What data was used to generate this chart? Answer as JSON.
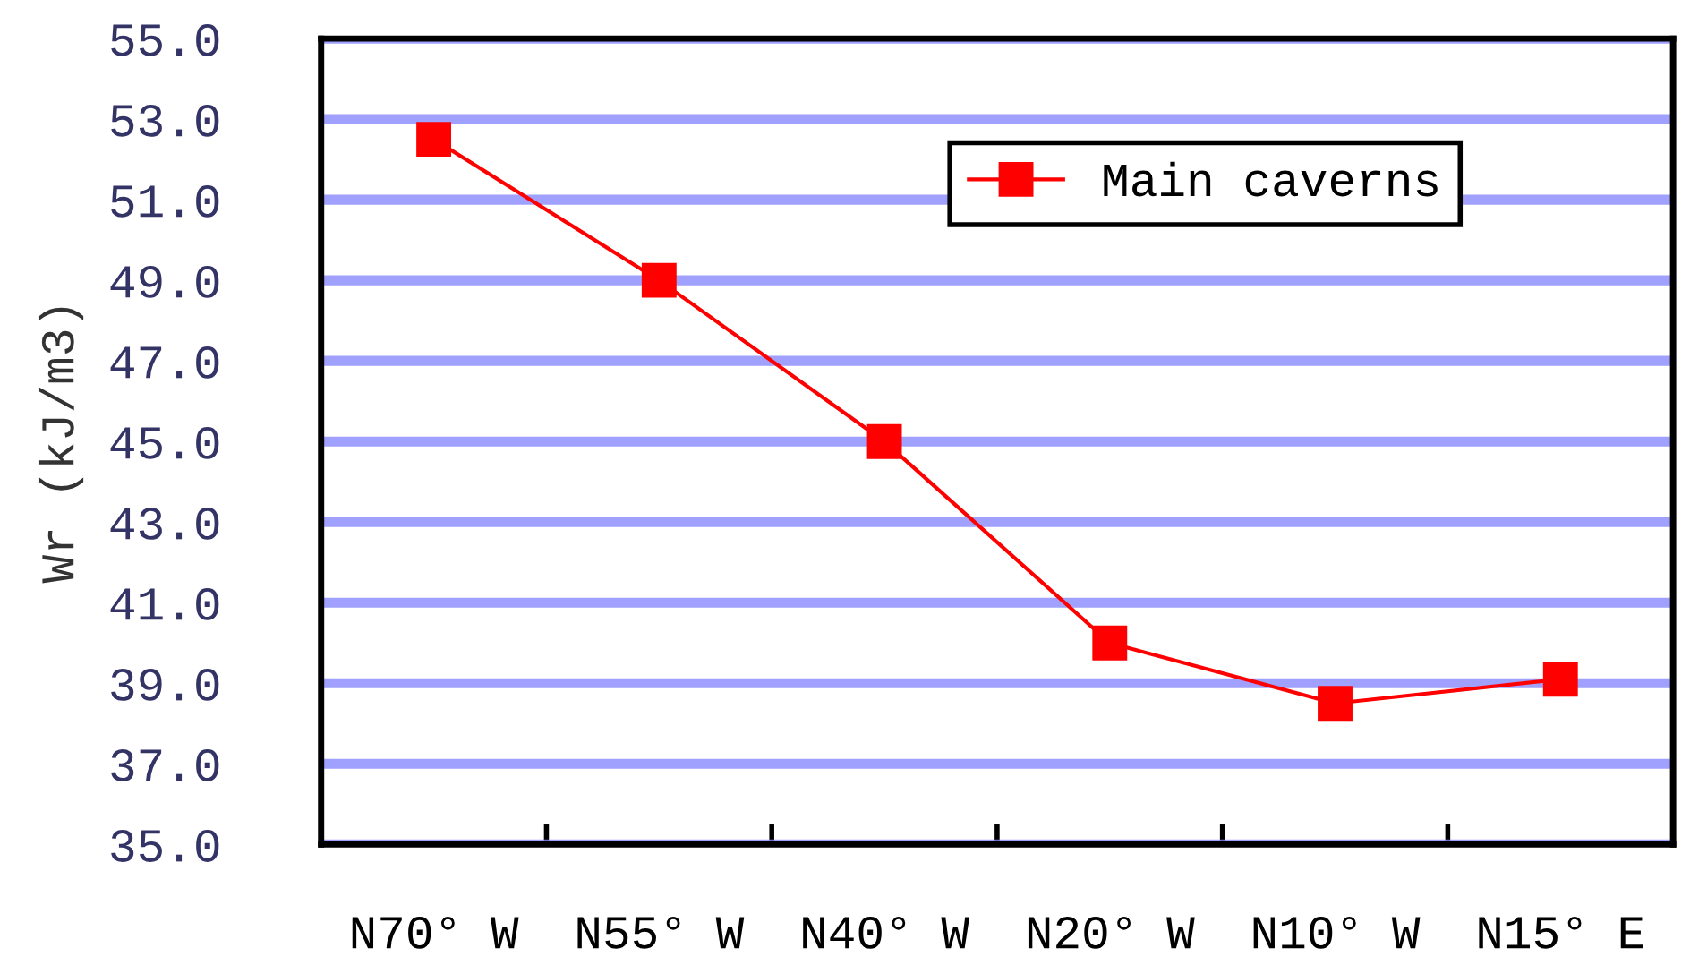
{
  "chart_data": {
    "type": "line",
    "ylabel": "Wr (kJ/m3)",
    "categories": [
      "N70° W",
      "N55° W",
      "N40° W",
      "N20° W",
      "N10° W",
      "N15° E"
    ],
    "series": [
      {
        "name": "Main caverns",
        "color": "#ff0000",
        "values": [
          52.5,
          49.0,
          45.0,
          40.0,
          38.5,
          39.1
        ]
      }
    ],
    "ylim": [
      35,
      55
    ],
    "yticks": [
      {
        "value": 35,
        "label": "35.0"
      },
      {
        "value": 37,
        "label": "37.0"
      },
      {
        "value": 39,
        "label": "39.0"
      },
      {
        "value": 41,
        "label": "41.0"
      },
      {
        "value": 43,
        "label": "43.0"
      },
      {
        "value": 45,
        "label": "45.0"
      },
      {
        "value": 47,
        "label": "47.0"
      },
      {
        "value": 49,
        "label": "49.0"
      },
      {
        "value": 51,
        "label": "51.0"
      },
      {
        "value": 53,
        "label": "53.0"
      },
      {
        "value": 55,
        "label": "55.0"
      }
    ],
    "grid": "y",
    "legend": "top right",
    "marker": "square",
    "line_style": "solid"
  }
}
